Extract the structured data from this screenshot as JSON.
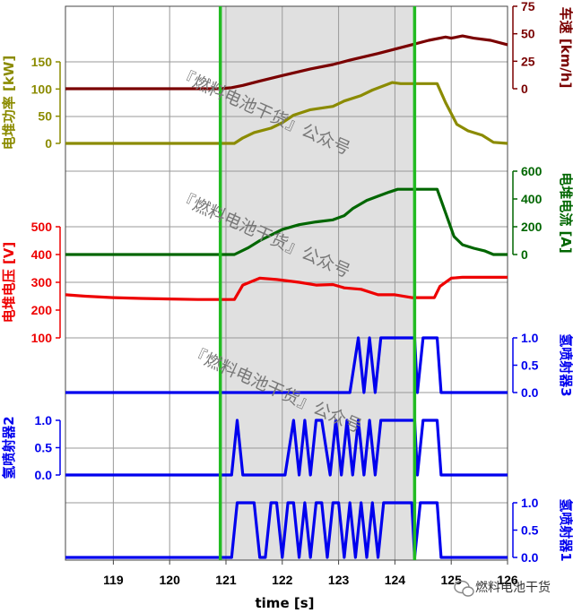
{
  "chart_data": {
    "type": "line",
    "xlabel": "time [s]",
    "xlim": [
      118.15,
      126.0
    ],
    "xticks": [
      119,
      120,
      121,
      122,
      123,
      124,
      125,
      126
    ],
    "grid": true,
    "highlight_window": [
      120.9,
      124.35
    ],
    "highlight_color": "#e0e0e0",
    "marker_lines": [
      120.9,
      124.35
    ],
    "marker_color": "#22bb22",
    "watermark": "『燃料电池干货』公众号",
    "brand_label": "燃料电池干货",
    "panels": [
      {
        "id": "speed",
        "ylabel": "车速 [km/h]",
        "side": "right",
        "color": "#7a0000",
        "ylim": [
          0,
          75
        ],
        "yticks": [
          0,
          25,
          50,
          75
        ],
        "series": [
          {
            "color": "#7a0000",
            "x": [
              118.15,
              120.9,
              121.1,
              121.3,
              121.6,
              122.0,
              122.5,
              122.9,
              123.2,
              123.7,
              124.0,
              124.3,
              124.6,
              124.9,
              125.0,
              125.2,
              125.4,
              125.7,
              126.0
            ],
            "y": [
              0,
              0,
              1,
              3,
              7,
              12,
              18,
              22,
              26,
              32,
              36,
              40,
              44,
              47,
              46,
              48,
              46,
              44,
              40
            ]
          }
        ]
      },
      {
        "id": "power",
        "ylabel": "电堆功率 [kW]",
        "side": "left",
        "color": "#8b8b00",
        "ylim": [
          0,
          150
        ],
        "yticks": [
          0,
          50,
          100,
          150
        ],
        "series": [
          {
            "color": "#8b8b00",
            "x": [
              118.15,
              121.15,
              121.3,
              121.5,
              121.8,
              122.0,
              122.2,
              122.5,
              122.9,
              123.1,
              123.4,
              123.6,
              123.8,
              123.95,
              124.1,
              124.75,
              124.9,
              125.1,
              125.3,
              125.55,
              125.75,
              126.0
            ],
            "y": [
              0,
              0,
              10,
              20,
              28,
              38,
              52,
              62,
              68,
              78,
              88,
              98,
              106,
              112,
              110,
              110,
              75,
              35,
              23,
              15,
              2,
              0
            ]
          }
        ]
      },
      {
        "id": "current",
        "ylabel": "电堆电流 [A]",
        "side": "right",
        "color": "#006600",
        "ylim": [
          0,
          600
        ],
        "yticks": [
          0,
          200,
          400,
          600
        ],
        "series": [
          {
            "color": "#006600",
            "x": [
              118.15,
              121.15,
              121.4,
              121.6,
              121.8,
              122.0,
              122.3,
              122.6,
              122.9,
              123.1,
              123.25,
              123.5,
              123.7,
              123.9,
              124.05,
              124.2,
              124.75,
              124.9,
              125.05,
              125.2,
              125.4,
              125.6,
              125.75,
              126.0
            ],
            "y": [
              0,
              0,
              50,
              100,
              140,
              180,
              215,
              235,
              250,
              280,
              330,
              390,
              420,
              450,
              470,
              470,
              470,
              300,
              130,
              70,
              45,
              25,
              0,
              0
            ]
          }
        ]
      },
      {
        "id": "voltage",
        "ylabel": "电堆电压 [V]",
        "side": "left",
        "color": "#ee0000",
        "ylim": [
          100,
          500
        ],
        "yticks": [
          100,
          200,
          300,
          400,
          500
        ],
        "series": [
          {
            "color": "#ee0000",
            "x": [
              118.15,
              118.5,
              119.0,
              119.5,
              120.0,
              120.5,
              120.9,
              121.15,
              121.3,
              121.6,
              121.9,
              122.3,
              122.6,
              122.9,
              123.1,
              123.4,
              123.7,
              124.0,
              124.3,
              124.7,
              124.8,
              125.0,
              125.2,
              126.0
            ],
            "y": [
              255,
              250,
              245,
              242,
              240,
              238,
              238,
              238,
              290,
              315,
              310,
              300,
              290,
              292,
              280,
              275,
              255,
              255,
              245,
              245,
              285,
              315,
              318,
              318
            ]
          }
        ]
      },
      {
        "id": "h2inj3",
        "ylabel": "氢喷射器3",
        "side": "right",
        "color": "#0000ee",
        "ylim": [
          0,
          1
        ],
        "yticks": [
          0.0,
          0.5,
          1.0
        ],
        "tick_labels": [
          "0.0",
          "0.5",
          "1.0"
        ],
        "series": [
          {
            "color": "#0000ee",
            "x": [
              118.15,
              123.2,
              123.35,
              123.45,
              123.55,
              123.65,
              123.75,
              123.85,
              124.35,
              124.4,
              124.5,
              124.75,
              124.82,
              126.0
            ],
            "y": [
              0,
              0,
              1,
              0,
              1,
              0,
              1,
              1,
              1,
              0,
              1,
              1,
              0,
              0
            ]
          }
        ]
      },
      {
        "id": "h2inj2",
        "ylabel": "氢喷射器2",
        "side": "left",
        "color": "#0000ee",
        "ylim": [
          0,
          1
        ],
        "yticks": [
          0.0,
          0.5,
          1.0
        ],
        "tick_labels": [
          "0.0",
          "0.5",
          "1.0"
        ],
        "series": [
          {
            "color": "#0000ee",
            "x": [
              118.15,
              121.1,
              121.2,
              121.3,
              122.05,
              122.2,
              122.3,
              122.4,
              122.5,
              122.6,
              122.7,
              122.85,
              122.95,
              123.05,
              123.15,
              123.25,
              123.35,
              123.45,
              123.55,
              123.65,
              123.75,
              123.85,
              124.35,
              124.4,
              124.5,
              124.75,
              124.82,
              126.0
            ],
            "y": [
              0,
              0,
              1,
              0,
              0,
              1,
              0,
              1,
              0,
              1,
              1,
              0,
              1,
              0,
              1,
              0,
              1,
              0,
              1,
              0,
              1,
              1,
              1,
              0,
              1,
              1,
              0,
              0
            ]
          }
        ]
      },
      {
        "id": "h2inj1",
        "ylabel": "氢喷射器1",
        "side": "right",
        "color": "#0000ee",
        "ylim": [
          0,
          1
        ],
        "yticks": [
          0.0,
          0.5,
          1.0
        ],
        "tick_labels": [
          "0.0",
          "0.5",
          "1.0"
        ],
        "series": [
          {
            "color": "#0000ee",
            "x": [
              118.15,
              121.1,
              121.2,
              121.5,
              121.6,
              121.7,
              121.8,
              121.9,
              122.0,
              122.1,
              122.2,
              122.3,
              122.4,
              122.5,
              122.6,
              122.7,
              122.8,
              122.9,
              123.0,
              123.1,
              123.2,
              123.3,
              123.4,
              123.5,
              123.6,
              123.7,
              123.8,
              124.3,
              124.35,
              124.45,
              124.75,
              124.82,
              126.0
            ],
            "y": [
              0,
              0,
              1,
              1,
              0,
              0,
              1,
              1,
              0,
              1,
              1,
              0,
              1,
              0,
              1,
              1,
              0,
              1,
              1,
              0,
              1,
              0,
              1,
              0,
              1,
              0,
              1,
              1,
              0,
              1,
              1,
              0,
              0
            ]
          }
        ]
      }
    ]
  }
}
